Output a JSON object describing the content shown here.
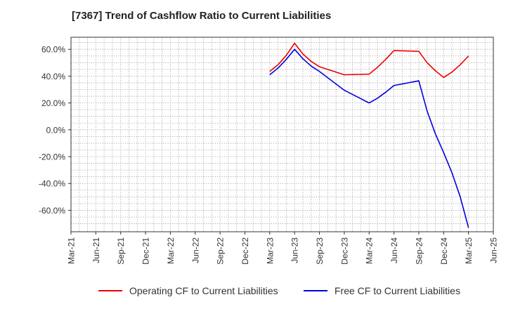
{
  "chart_data": {
    "type": "line",
    "title": "[7367]  Trend of Cashflow Ratio to Current Liabilities",
    "xlabel": "",
    "ylabel": "",
    "x_ticks": [
      "Mar-21",
      "Jun-21",
      "Sep-21",
      "Dec-21",
      "Mar-22",
      "Jun-22",
      "Sep-22",
      "Dec-22",
      "Mar-23",
      "Jun-23",
      "Sep-23",
      "Dec-23",
      "Mar-24",
      "Jun-24",
      "Sep-24",
      "Dec-24",
      "Mar-25",
      "Jun-25"
    ],
    "y_ticks": [
      {
        "value": 60,
        "label": "60.0%"
      },
      {
        "value": 40,
        "label": "40.0%"
      },
      {
        "value": 20,
        "label": "20.0%"
      },
      {
        "value": 0,
        "label": "0.0%"
      },
      {
        "value": -20,
        "label": "-20.0%"
      },
      {
        "value": -40,
        "label": "-40.0%"
      },
      {
        "value": -60,
        "label": "-60.0%"
      }
    ],
    "ylim": [
      -76,
      69
    ],
    "grid": true,
    "legend_position": "bottom-center",
    "series": [
      {
        "name": "Operating CF to Current Liabilities",
        "color": "#ee0000",
        "points": [
          {
            "x": "Mar-23",
            "y": 43.5
          },
          {
            "x": "Apr-23",
            "y": 48.5
          },
          {
            "x": "May-23",
            "y": 55.5
          },
          {
            "x": "Jun-23",
            "y": 64.5
          },
          {
            "x": "Jul-23",
            "y": 56.5
          },
          {
            "x": "Aug-23",
            "y": 51
          },
          {
            "x": "Sep-23",
            "y": 47
          },
          {
            "x": "Dec-23",
            "y": 41
          },
          {
            "x": "Mar-24",
            "y": 41.5
          },
          {
            "x": "Apr-24",
            "y": 46.5
          },
          {
            "x": "May-24",
            "y": 52.5
          },
          {
            "x": "Jun-24",
            "y": 59
          },
          {
            "x": "Sep-24",
            "y": 58.5
          },
          {
            "x": "Oct-24",
            "y": 50
          },
          {
            "x": "Nov-24",
            "y": 44
          },
          {
            "x": "Dec-24",
            "y": 39
          },
          {
            "x": "Jan-25",
            "y": 43
          },
          {
            "x": "Feb-25",
            "y": 48.5
          },
          {
            "x": "Mar-25",
            "y": 55
          }
        ]
      },
      {
        "name": "Free CF to Current Liabilities",
        "color": "#0000dd",
        "points": [
          {
            "x": "Mar-23",
            "y": 41
          },
          {
            "x": "Apr-23",
            "y": 46
          },
          {
            "x": "May-23",
            "y": 52.5
          },
          {
            "x": "Jun-23",
            "y": 60
          },
          {
            "x": "Jul-23",
            "y": 53
          },
          {
            "x": "Aug-23",
            "y": 47.5
          },
          {
            "x": "Sep-23",
            "y": 43.5
          },
          {
            "x": "Dec-23",
            "y": 29.5
          },
          {
            "x": "Mar-24",
            "y": 20
          },
          {
            "x": "Apr-24",
            "y": 23.5
          },
          {
            "x": "May-24",
            "y": 28
          },
          {
            "x": "Jun-24",
            "y": 33
          },
          {
            "x": "Sep-24",
            "y": 36.5
          },
          {
            "x": "Oct-24",
            "y": 14
          },
          {
            "x": "Nov-24",
            "y": -3
          },
          {
            "x": "Dec-24",
            "y": -17
          },
          {
            "x": "Jan-25",
            "y": -32
          },
          {
            "x": "Feb-25",
            "y": -50
          },
          {
            "x": "Mar-25",
            "y": -73
          }
        ]
      }
    ]
  }
}
